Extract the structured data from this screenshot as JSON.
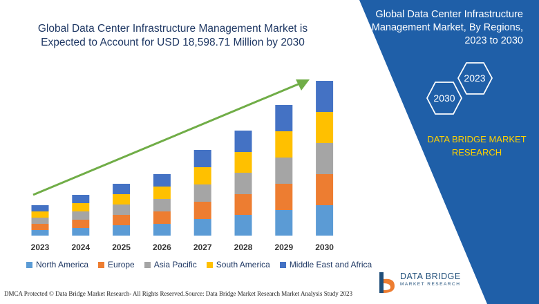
{
  "title": "Global Data Center Infrastructure Management Market is Expected to Account for USD 18,598.71 Million by 2030",
  "panel": {
    "title": "Global Data Center Infrastructure Management Market, By Regions, 2023 to 2030",
    "hex_2023": "2023",
    "hex_2030": "2030",
    "brand": "DATA BRIDGE MARKET RESEARCH",
    "bg_color": "#1f5fa8",
    "accent_color": "#ffd100"
  },
  "chart_data": {
    "type": "bar",
    "stacked": true,
    "categories": [
      "2023",
      "2024",
      "2025",
      "2026",
      "2027",
      "2028",
      "2029",
      "2030"
    ],
    "series": [
      {
        "name": "North America",
        "color": "#5b9bd5",
        "values": [
          8,
          11,
          15,
          17,
          24,
          30,
          37,
          44
        ]
      },
      {
        "name": "Europe",
        "color": "#ed7d31",
        "values": [
          9,
          12,
          15,
          18,
          25,
          30,
          38,
          45
        ]
      },
      {
        "name": "Asia Pacific",
        "color": "#a5a5a5",
        "values": [
          9,
          12,
          15,
          18,
          25,
          31,
          38,
          45
        ]
      },
      {
        "name": "South America",
        "color": "#ffc000",
        "values": [
          9,
          12,
          15,
          18,
          25,
          30,
          38,
          45
        ]
      },
      {
        "name": "Middle East and Africa",
        "color": "#4472c4",
        "values": [
          9,
          12,
          15,
          18,
          25,
          31,
          38,
          45
        ]
      }
    ],
    "trend_arrow": {
      "color": "#70ad47"
    },
    "grid": false,
    "legend_position": "bottom"
  },
  "footer": {
    "left": "DMCA Protected © Data Bridge Market Research- All Rights Reserved.",
    "right": "Source: Data Bridge Market Research Market Analysis Study 2023"
  },
  "logo": {
    "text": "DATA BRIDGE",
    "sub": "MARKET RESEARCH"
  }
}
